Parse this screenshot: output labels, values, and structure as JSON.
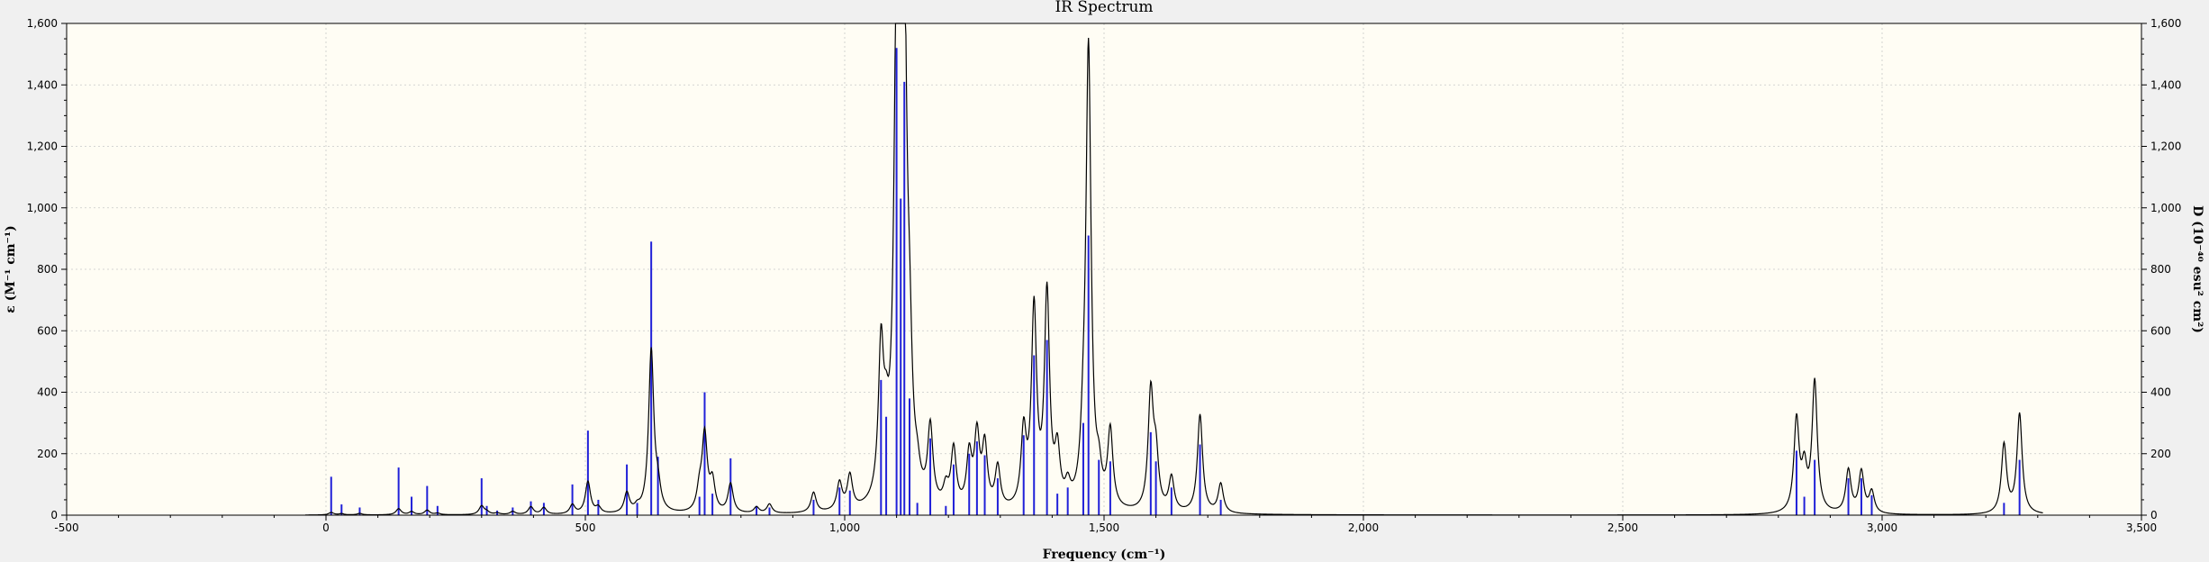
{
  "chart_data": {
    "type": "line",
    "title": "IR Spectrum",
    "xlabel": "Frequency (cm⁻¹)",
    "ylabel_left": "ε (M⁻¹ cm⁻¹)",
    "ylabel_right": "D (10⁻⁴⁰ esu² cm²)",
    "xlim": [
      -500,
      3500
    ],
    "ylim_left": [
      0,
      1600
    ],
    "ylim_right": [
      0,
      1600
    ],
    "x_ticks": [
      -500,
      0,
      500,
      1000,
      1500,
      2000,
      2500,
      3000,
      3500
    ],
    "x_tick_labels": [
      "-500",
      "0",
      "500",
      "1,000",
      "1,500",
      "2,000",
      "2,500",
      "3,000",
      "3,500"
    ],
    "y_ticks": [
      0,
      200,
      400,
      600,
      800,
      1000,
      1200,
      1400,
      1600
    ],
    "y_tick_labels": [
      "0",
      "200",
      "400",
      "600",
      "800",
      "1,000",
      "1,200",
      "1,400",
      "1,600"
    ],
    "grid": true,
    "colors": {
      "background": "#fffdf4",
      "spectrum": "#000000",
      "sticks": "#2020d8",
      "grid": "#c8c8c8"
    },
    "curve_range": [
      -40,
      3310
    ],
    "peak_width": 6,
    "sticks": [
      [
        10,
        125
      ],
      [
        30,
        35
      ],
      [
        65,
        25
      ],
      [
        140,
        155
      ],
      [
        165,
        60
      ],
      [
        195,
        95
      ],
      [
        215,
        30
      ],
      [
        300,
        120
      ],
      [
        310,
        30
      ],
      [
        330,
        15
      ],
      [
        360,
        25
      ],
      [
        395,
        45
      ],
      [
        420,
        40
      ],
      [
        475,
        100
      ],
      [
        505,
        275
      ],
      [
        525,
        50
      ],
      [
        580,
        165
      ],
      [
        600,
        40
      ],
      [
        627,
        890
      ],
      [
        640,
        190
      ],
      [
        720,
        60
      ],
      [
        730,
        400
      ],
      [
        745,
        70
      ],
      [
        780,
        185
      ],
      [
        830,
        30
      ],
      [
        855,
        25
      ],
      [
        940,
        50
      ],
      [
        990,
        90
      ],
      [
        1010,
        80
      ],
      [
        1070,
        440
      ],
      [
        1080,
        320
      ],
      [
        1100,
        1520
      ],
      [
        1108,
        1030
      ],
      [
        1115,
        1410
      ],
      [
        1125,
        380
      ],
      [
        1140,
        40
      ],
      [
        1165,
        250
      ],
      [
        1195,
        30
      ],
      [
        1210,
        165
      ],
      [
        1240,
        200
      ],
      [
        1255,
        240
      ],
      [
        1270,
        195
      ],
      [
        1295,
        120
      ],
      [
        1345,
        260
      ],
      [
        1365,
        520
      ],
      [
        1390,
        570
      ],
      [
        1410,
        70
      ],
      [
        1430,
        90
      ],
      [
        1460,
        300
      ],
      [
        1470,
        910
      ],
      [
        1490,
        180
      ],
      [
        1512,
        175
      ],
      [
        1590,
        270
      ],
      [
        1600,
        175
      ],
      [
        1630,
        90
      ],
      [
        1685,
        230
      ],
      [
        1725,
        50
      ],
      [
        2835,
        210
      ],
      [
        2850,
        60
      ],
      [
        2870,
        180
      ],
      [
        2935,
        120
      ],
      [
        2960,
        120
      ],
      [
        2980,
        65
      ],
      [
        3235,
        40
      ],
      [
        3265,
        180
      ]
    ],
    "peaks": [
      [
        10,
        8
      ],
      [
        30,
        4
      ],
      [
        65,
        5
      ],
      [
        140,
        20
      ],
      [
        165,
        10
      ],
      [
        195,
        15
      ],
      [
        215,
        5
      ],
      [
        300,
        28
      ],
      [
        310,
        8
      ],
      [
        330,
        5
      ],
      [
        360,
        10
      ],
      [
        395,
        25
      ],
      [
        420,
        22
      ],
      [
        475,
        30
      ],
      [
        505,
        105
      ],
      [
        525,
        20
      ],
      [
        580,
        65
      ],
      [
        600,
        15
      ],
      [
        627,
        530
      ],
      [
        640,
        65
      ],
      [
        720,
        65
      ],
      [
        730,
        250
      ],
      [
        745,
        95
      ],
      [
        780,
        95
      ],
      [
        830,
        20
      ],
      [
        855,
        30
      ],
      [
        940,
        65
      ],
      [
        990,
        90
      ],
      [
        1010,
        110
      ],
      [
        1070,
        480
      ],
      [
        1080,
        150
      ],
      [
        1100,
        1450
      ],
      [
        1108,
        530
      ],
      [
        1115,
        1380
      ],
      [
        1125,
        350
      ],
      [
        1140,
        60
      ],
      [
        1165,
        250
      ],
      [
        1195,
        60
      ],
      [
        1210,
        190
      ],
      [
        1240,
        170
      ],
      [
        1255,
        230
      ],
      [
        1270,
        200
      ],
      [
        1295,
        135
      ],
      [
        1345,
        240
      ],
      [
        1365,
        640
      ],
      [
        1390,
        690
      ],
      [
        1410,
        170
      ],
      [
        1430,
        60
      ],
      [
        1460,
        140
      ],
      [
        1470,
        1490
      ],
      [
        1490,
        90
      ],
      [
        1512,
        250
      ],
      [
        1590,
        380
      ],
      [
        1600,
        165
      ],
      [
        1630,
        110
      ],
      [
        1685,
        320
      ],
      [
        1725,
        95
      ],
      [
        2835,
        300
      ],
      [
        2850,
        130
      ],
      [
        2870,
        425
      ],
      [
        2935,
        140
      ],
      [
        2960,
        135
      ],
      [
        2980,
        70
      ],
      [
        3235,
        225
      ],
      [
        3265,
        325
      ]
    ]
  }
}
